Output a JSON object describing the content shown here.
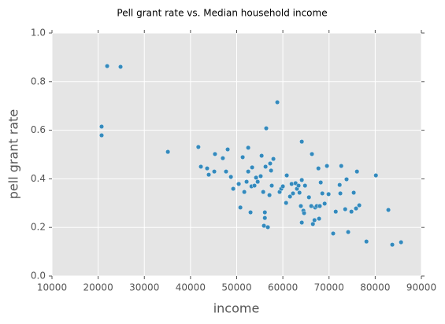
{
  "chart_data": {
    "type": "scatter",
    "title": "Pell grant rate vs. Median household income",
    "xlabel": "income",
    "ylabel": "pell grant rate",
    "color": "#348abd",
    "grid": true,
    "xlim": [
      10000,
      90000
    ],
    "xticks": [
      10000,
      20000,
      30000,
      40000,
      50000,
      60000,
      70000,
      80000,
      90000
    ],
    "ylim": [
      0,
      1
    ],
    "yticks": [
      {
        "value": 0,
        "label": "0.0"
      },
      0.2,
      0.4,
      0.6,
      0.8,
      {
        "value": 1,
        "label": "1.0"
      }
    ],
    "x": [
      20750,
      20750,
      21950,
      24850,
      35100,
      41700,
      42250,
      43600,
      43950,
      45150,
      45300,
      47000,
      48050,
      47700,
      48750,
      49250,
      50450,
      50800,
      51300,
      51650,
      52150,
      52500,
      52500,
      53000,
      53200,
      53350,
      53850,
      54200,
      54550,
      55200,
      55400,
      55750,
      55900,
      56100,
      56100,
      56250,
      56400,
      56750,
      57100,
      57250,
      57450,
      57600,
      57950,
      58800,
      59300,
      59650,
      60000,
      60700,
      60850,
      61550,
      61900,
      62200,
      62750,
      63050,
      63400,
      63600,
      63900,
      64100,
      64100,
      64100,
      64450,
      64600,
      64800,
      65650,
      66150,
      66300,
      66500,
      66850,
      67000,
      67350,
      67700,
      67850,
      68000,
      68200,
      68550,
      69050,
      69550,
      69900,
      70900,
      71450,
      72300,
      72450,
      72650,
      73500,
      73800,
      74150,
      74850,
      75350,
      75850,
      76050,
      76550,
      78100,
      80150,
      82850,
      83700,
      85600
    ],
    "values": [
      0.615,
      0.579,
      0.864,
      0.861,
      0.511,
      0.531,
      0.45,
      0.443,
      0.417,
      0.43,
      0.502,
      0.485,
      0.521,
      0.43,
      0.408,
      0.359,
      0.379,
      0.282,
      0.489,
      0.346,
      0.388,
      0.528,
      0.43,
      0.262,
      0.369,
      0.447,
      0.372,
      0.405,
      0.388,
      0.411,
      0.495,
      0.346,
      0.207,
      0.262,
      0.239,
      0.45,
      0.608,
      0.201,
      0.333,
      0.463,
      0.434,
      0.372,
      0.482,
      0.715,
      0.346,
      0.359,
      0.369,
      0.301,
      0.414,
      0.327,
      0.379,
      0.34,
      0.382,
      0.359,
      0.372,
      0.343,
      0.288,
      0.553,
      0.395,
      0.22,
      0.269,
      0.259,
      0.372,
      0.324,
      0.288,
      0.502,
      0.214,
      0.23,
      0.282,
      0.288,
      0.443,
      0.236,
      0.288,
      0.385,
      0.34,
      0.298,
      0.453,
      0.337,
      0.175,
      0.265,
      0.375,
      0.34,
      0.453,
      0.275,
      0.398,
      0.181,
      0.265,
      0.343,
      0.278,
      0.43,
      0.291,
      0.142,
      0.414,
      0.272,
      0.129,
      0.139
    ]
  }
}
